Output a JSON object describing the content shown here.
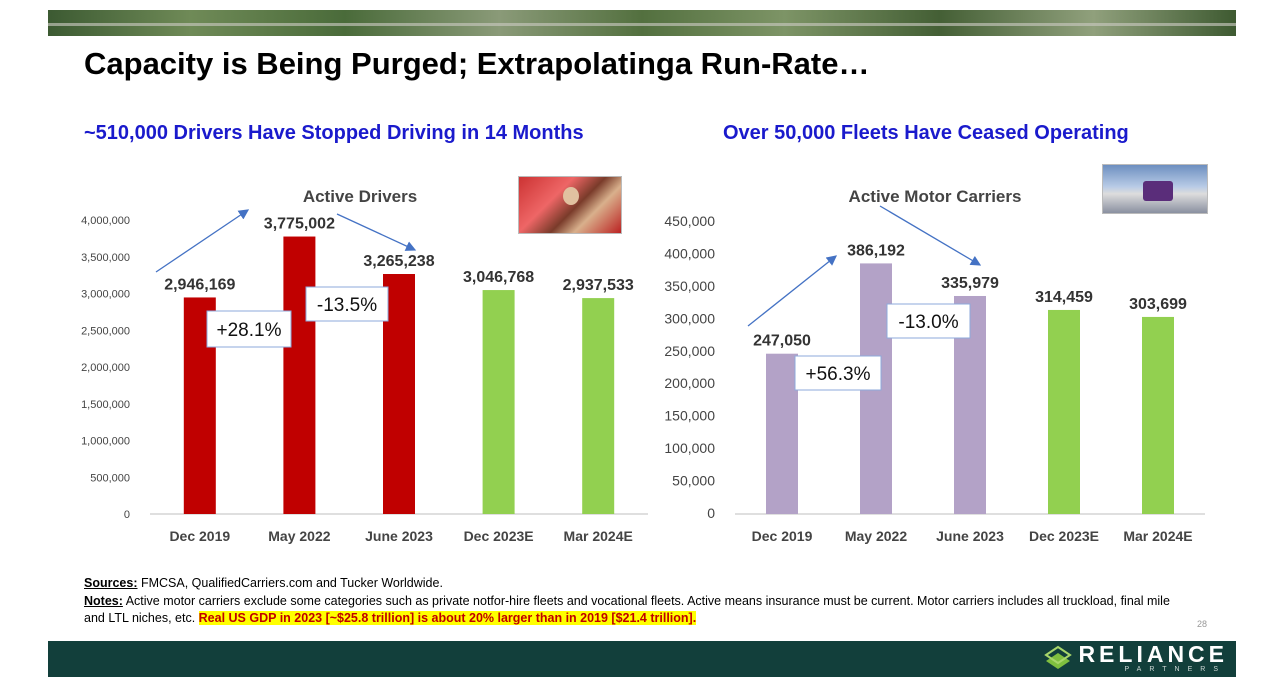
{
  "title": "Capacity is Being Purged; Extrapolatinga Run-Rate…",
  "left_panel": {
    "subtitle": "~510,000 Drivers Have Stopped Driving in 14 Months"
  },
  "right_panel": {
    "subtitle": "Over 50,000 Fleets Have Ceased Operating"
  },
  "colors": {
    "red": "#c00000",
    "green": "#92d050",
    "purple": "#b3a2c7",
    "arrow": "#4472c4",
    "subtitle": "#1a1acc"
  },
  "chart_data": [
    {
      "type": "bar",
      "title": "Active Drivers",
      "categories": [
        "Dec 2019",
        "May 2022",
        "June 2023",
        "Dec 2023E",
        "Mar 2024E"
      ],
      "values": [
        2946169,
        3775002,
        3265238,
        3046768,
        2937533
      ],
      "value_labels": [
        "2,946,169",
        "3,775,002",
        "3,265,238",
        "3,046,768",
        "2,937,533"
      ],
      "bar_colors": [
        "#c00000",
        "#c00000",
        "#c00000",
        "#92d050",
        "#92d050"
      ],
      "ylim": [
        0,
        4000000
      ],
      "yticks": [
        0,
        500000,
        1000000,
        1500000,
        2000000,
        2500000,
        3000000,
        3500000,
        4000000
      ],
      "ytick_labels": [
        "0",
        "500,000",
        "1,000,000",
        "1,500,000",
        "2,000,000",
        "2,500,000",
        "3,000,000",
        "3,500,000",
        "4,000,000"
      ],
      "xlabel": "",
      "ylabel": "",
      "grid": false,
      "annotations": [
        {
          "text": "+28.1%",
          "from": "Dec 2019",
          "to": "May 2022"
        },
        {
          "text": "-13.5%",
          "from": "May 2022",
          "to": "June 2023"
        }
      ]
    },
    {
      "type": "bar",
      "title": "Active Motor Carriers",
      "categories": [
        "Dec 2019",
        "May 2022",
        "June 2023",
        "Dec 2023E",
        "Mar 2024E"
      ],
      "values": [
        247050,
        386192,
        335979,
        314459,
        303699
      ],
      "value_labels": [
        "247,050",
        "386,192",
        "335,979",
        "314,459",
        "303,699"
      ],
      "bar_colors": [
        "#b3a2c7",
        "#b3a2c7",
        "#b3a2c7",
        "#92d050",
        "#92d050"
      ],
      "ylim": [
        0,
        450000
      ],
      "yticks": [
        0,
        50000,
        100000,
        150000,
        200000,
        250000,
        300000,
        350000,
        400000,
        450000
      ],
      "ytick_labels": [
        "0",
        "50,000",
        "100,000",
        "150,000",
        "200,000",
        "250,000",
        "300,000",
        "350,000",
        "400,000",
        "450,000"
      ],
      "xlabel": "",
      "ylabel": "",
      "grid": false,
      "annotations": [
        {
          "text": "+56.3%",
          "from": "Dec 2019",
          "to": "May 2022"
        },
        {
          "text": "-13.0%",
          "from": "May 2022",
          "to": "June 2023"
        }
      ]
    }
  ],
  "sources": {
    "label": "Sources:",
    "text": " FMCSA, QualifiedCarriers.com and Tucker Worldwide."
  },
  "notes": {
    "label": "Notes:",
    "text": " Active motor carriers exclude some categories such as private notfor-hire fleets and vocational fleets. Active means insurance must be current. Motor carriers includes all truckload, final mile and LTL niches, etc.  ",
    "highlight": "Real US GDP in 2023 [~$25.8 trillion] is about 20% larger than in 2019 [$21.4 trillion]."
  },
  "page_number": "28",
  "logo": {
    "name": "RELIANCE",
    "sub": "PARTNERS"
  }
}
